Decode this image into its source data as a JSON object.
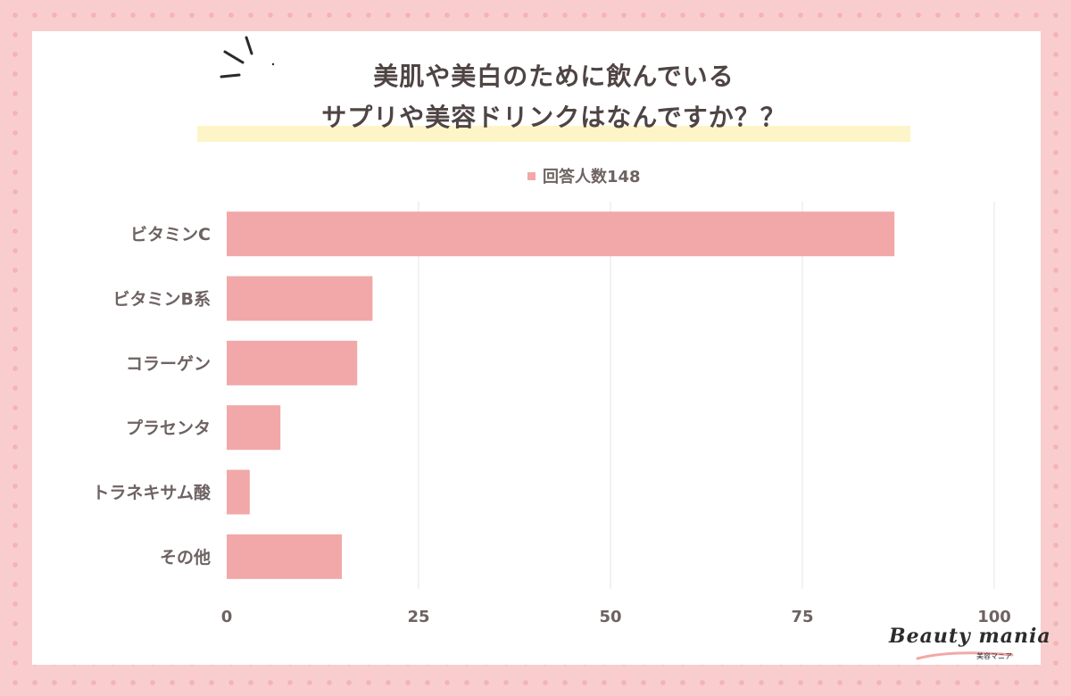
{
  "title": {
    "line1": "美肌や美白のために飲んでいる",
    "line2": "サプリや美容ドリンクはなんですか？？"
  },
  "colors": {
    "bar": "#f2a8a8",
    "text": "#6e6262",
    "title": "#4f4444",
    "highlight": "#fdf5c7",
    "grid": "#e6e6e6"
  },
  "logo": {
    "text": "Beauty mania",
    "sub": "美容マニア"
  },
  "chart_data": {
    "type": "bar",
    "orientation": "horizontal",
    "categories": [
      "ビタミンC",
      "ビタミンB系",
      "コラーゲン",
      "プラセンタ",
      "トラネキサム酸",
      "その他"
    ],
    "series": [
      {
        "name": "回答人数148",
        "values": [
          87,
          19,
          17,
          7,
          3,
          15
        ]
      }
    ],
    "xlim": [
      0,
      100
    ],
    "xticks": [
      0,
      25,
      50,
      75,
      100
    ],
    "grid": true,
    "legend": "top-center"
  }
}
